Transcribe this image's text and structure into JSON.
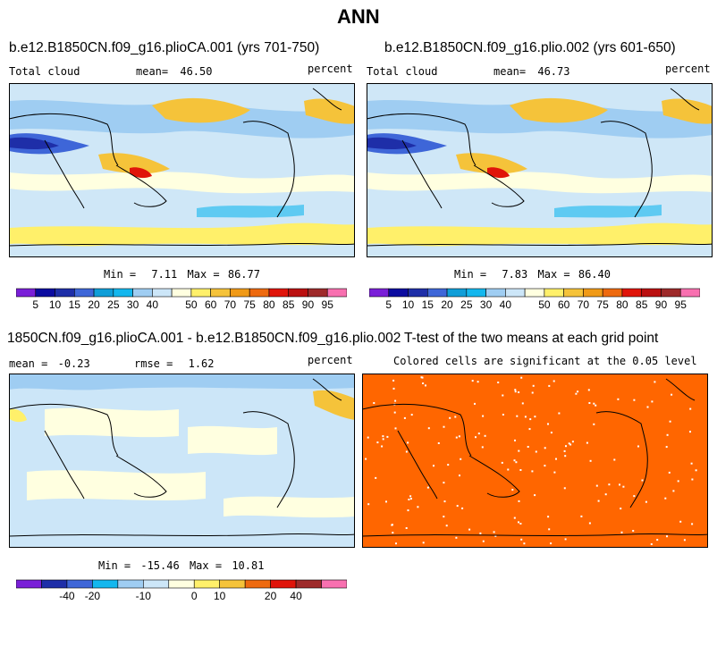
{
  "figure": {
    "title": "ANN",
    "units": "percent"
  },
  "chart_data": [
    {
      "type": "heatmap",
      "panel": "top-left",
      "title": "b.e12.B1850CN.f09_g16.plioCA.001 (yrs 701-750)",
      "variable": "Total cloud",
      "units": "percent",
      "mean_label": "mean=",
      "mean": "46.50",
      "min_label": "Min =",
      "min": "7.11",
      "max_label": "Max =",
      "max": "86.77",
      "colorbar_ticks": [
        "5",
        "10",
        "15",
        "20",
        "25",
        "30",
        "40",
        "50",
        "60",
        "70",
        "75",
        "80",
        "85",
        "90",
        "95"
      ]
    },
    {
      "type": "heatmap",
      "panel": "top-right",
      "title": "b.e12.B1850CN.f09_g16.plio.002 (yrs 601-650)",
      "variable": "Total cloud",
      "units": "percent",
      "mean_label": "mean=",
      "mean": "46.73",
      "min_label": "Min =",
      "min": "7.83",
      "max_label": "Max =",
      "max": "86.40",
      "colorbar_ticks": [
        "5",
        "10",
        "15",
        "20",
        "25",
        "30",
        "40",
        "50",
        "60",
        "70",
        "75",
        "80",
        "85",
        "90",
        "95"
      ]
    },
    {
      "type": "heatmap",
      "panel": "bottom-left",
      "title": "1850CN.f09_g16.plioCA.001 - b.e12.B1850CN.f09_g16.plio.002",
      "units": "percent",
      "mean_label": "mean =",
      "mean": "-0.23",
      "rmse_label": "rmse =",
      "rmse": "1.62",
      "min_label": "Min =",
      "min": "-15.46",
      "max_label": "Max =",
      "max": "10.81",
      "colorbar_ticks": [
        "-40",
        "-20",
        "-10",
        "0",
        "10",
        "20",
        "40"
      ]
    },
    {
      "type": "heatmap",
      "panel": "bottom-right",
      "title": "T-test of the two means at each grid point",
      "subtitle": "Colored cells are significant at the 0.05 level"
    }
  ],
  "colors": {
    "abs_scale": [
      "#7a1fd8",
      "#0b0ba0",
      "#1e2ea8",
      "#3e66d8",
      "#0f9ed8",
      "#13b7ee",
      "#9fcdf2",
      "#cce6f8",
      "#ffffe0",
      "#fff06a",
      "#f5c33a",
      "#f09a17",
      "#ee6a0f",
      "#e0140a",
      "#bb1010",
      "#9e2a2a",
      "#f870b0"
    ],
    "diff_scale": [
      "#7a1fd8",
      "#1e2ea8",
      "#3e66d8",
      "#13b7ee",
      "#9fcdf2",
      "#cce6f8",
      "#ffffe0",
      "#fff06a",
      "#f5c33a",
      "#ee6a0f",
      "#e0140a",
      "#9e2a2a",
      "#f870b0"
    ],
    "ttest": "#ff6600",
    "map_base": "#cfe7f7"
  }
}
